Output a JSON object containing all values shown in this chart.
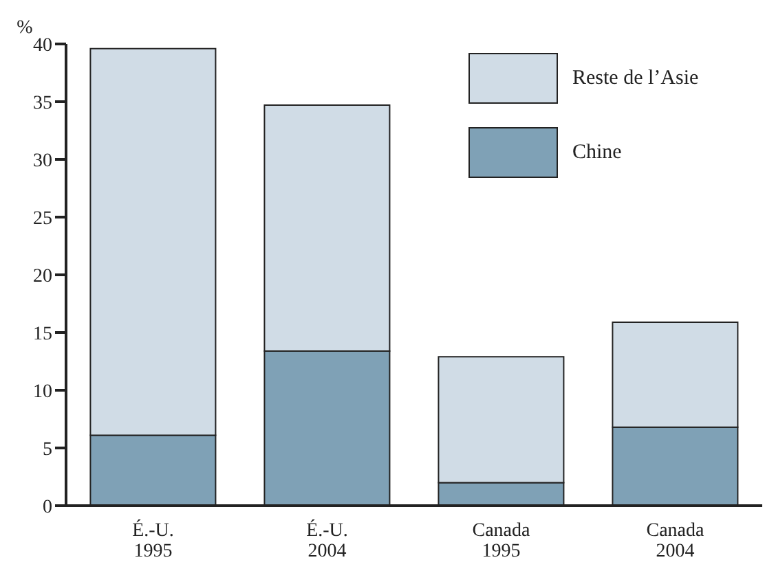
{
  "chart_data": {
    "type": "bar",
    "stacked": true,
    "ylabel": "%",
    "categories": [
      "É.-U.\n1995",
      "É.-U.\n2004",
      "Canada\n1995",
      "Canada\n2004"
    ],
    "series": [
      {
        "name": "Chine",
        "color": "#7fa1b6",
        "values": [
          6.1,
          13.4,
          2.0,
          6.8
        ]
      },
      {
        "name": "Reste de l’Asie",
        "color": "#d0dce6",
        "values": [
          33.5,
          21.3,
          10.9,
          9.1
        ]
      }
    ],
    "ylim": [
      0,
      40
    ],
    "yticks": [
      0,
      5,
      10,
      15,
      20,
      25,
      30,
      35,
      40
    ],
    "grid": false,
    "legend": "top right"
  }
}
